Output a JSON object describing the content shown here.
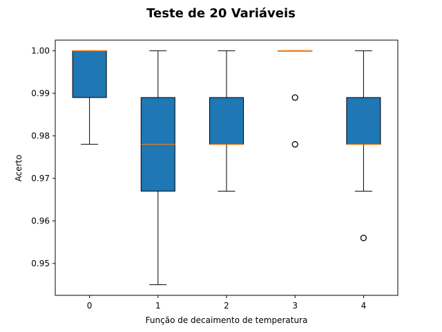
{
  "chart_data": {
    "type": "box",
    "title": "Teste de 20 Variáveis",
    "xlabel": "Função de decaimento de temperatura",
    "ylabel": "Acerto",
    "categories": [
      "0",
      "1",
      "2",
      "3",
      "4"
    ],
    "ylim": [
      0.9425,
      1.0025
    ],
    "yticks": [
      0.95,
      0.96,
      0.97,
      0.98,
      0.99,
      1.0
    ],
    "ytick_labels": [
      "0.95",
      "0.96",
      "0.97",
      "0.98",
      "0.99",
      "1.00"
    ],
    "grid": false,
    "box_color": "#1f77b4",
    "median_color": "#ff7f0e",
    "boxes": [
      {
        "category": "0",
        "whislo": 0.978,
        "q1": 0.989,
        "med": 1.0,
        "q3": 1.0,
        "whishi": 1.0,
        "fliers": []
      },
      {
        "category": "1",
        "whislo": 0.945,
        "q1": 0.967,
        "med": 0.978,
        "q3": 0.989,
        "whishi": 1.0,
        "fliers": []
      },
      {
        "category": "2",
        "whislo": 0.967,
        "q1": 0.978,
        "med": 0.978,
        "q3": 0.989,
        "whishi": 1.0,
        "fliers": []
      },
      {
        "category": "3",
        "whislo": 1.0,
        "q1": 1.0,
        "med": 1.0,
        "q3": 1.0,
        "whishi": 1.0,
        "fliers": [
          0.989,
          0.978
        ]
      },
      {
        "category": "4",
        "whislo": 0.967,
        "q1": 0.978,
        "med": 0.978,
        "q3": 0.989,
        "whishi": 1.0,
        "fliers": [
          0.956
        ]
      }
    ]
  }
}
